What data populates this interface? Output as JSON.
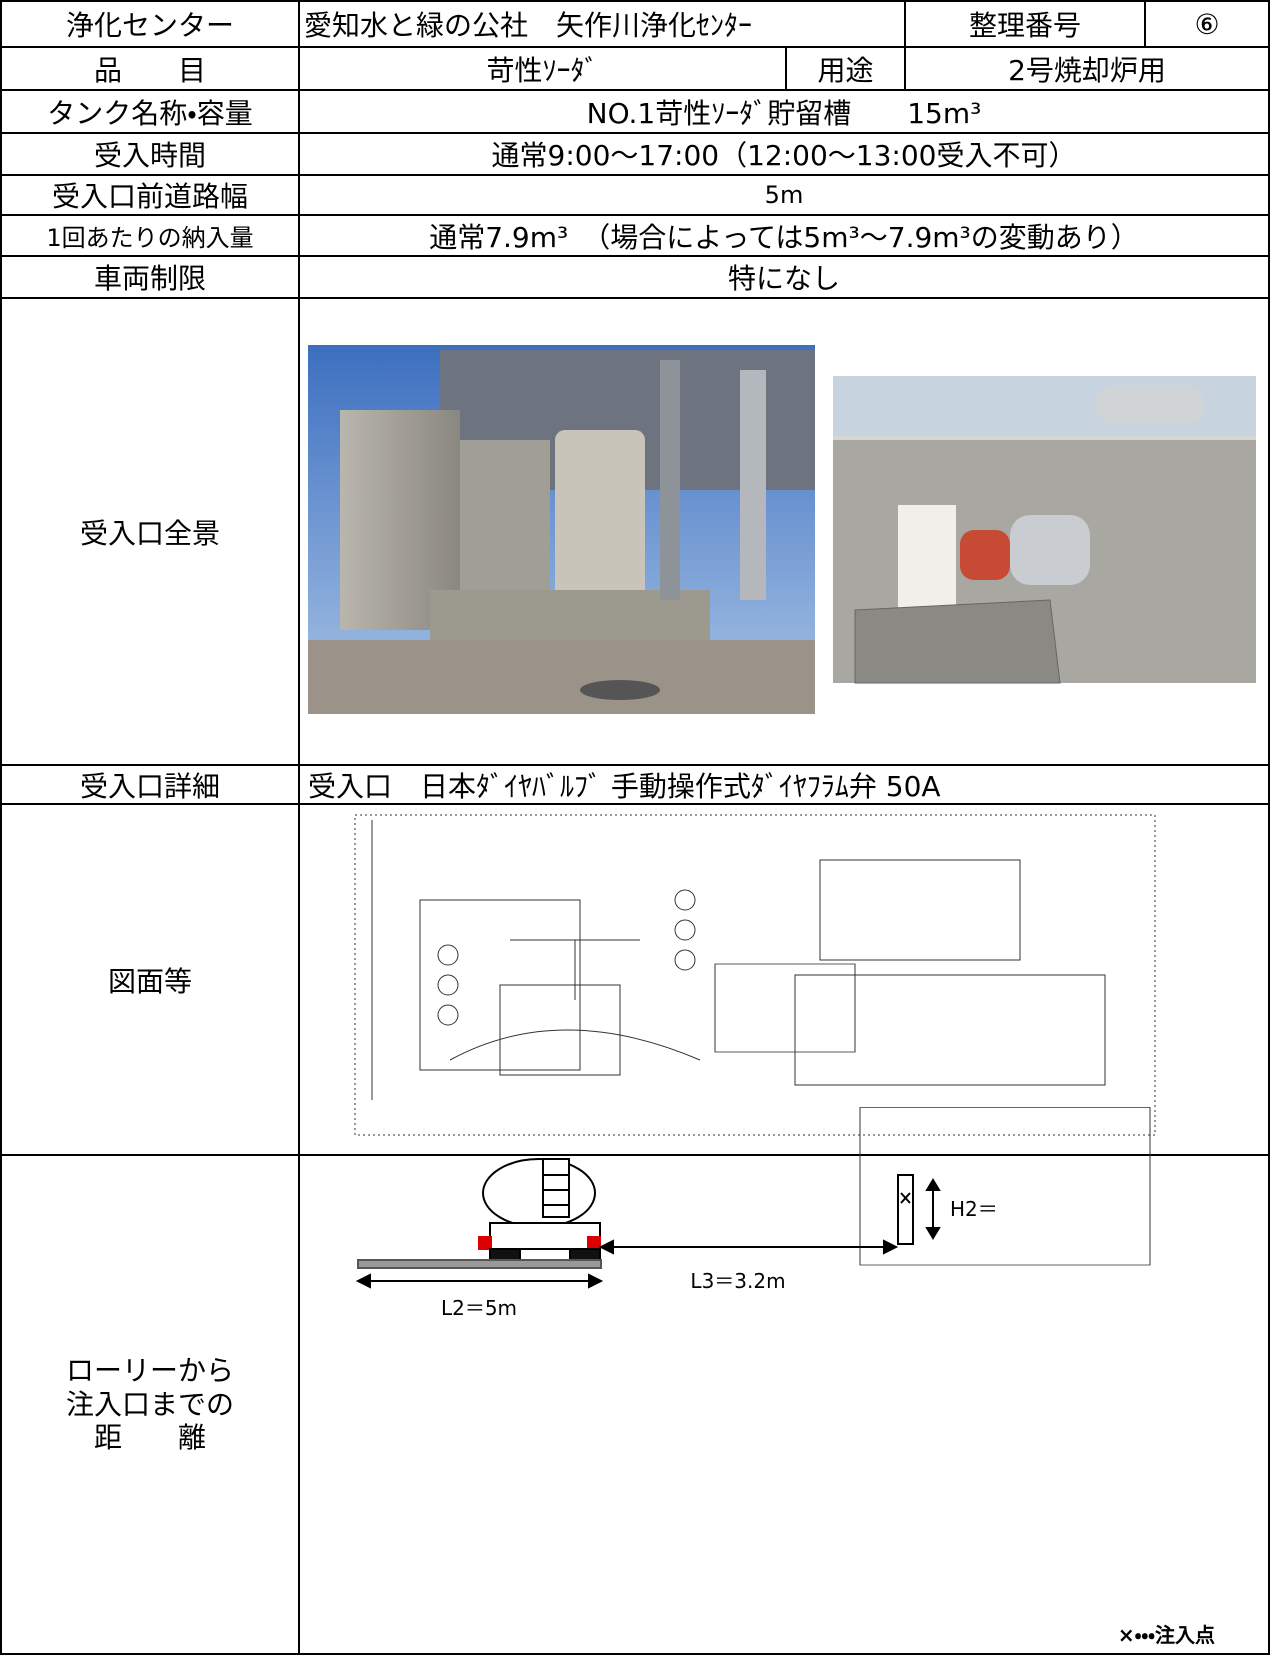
{
  "table": {
    "rows": [
      [
        "浄化センター",
        "愛知水と緑の公社　矢作川浄化ｾﾝﾀｰ",
        "整理番号",
        "⑥"
      ],
      [
        "品　　目",
        "苛性ｿｰﾀﾞ",
        "用途",
        "2号焼却炉用"
      ],
      [
        "タンク名称・容量",
        "NO.1苛性ｿｰﾀﾞ貯留槽　　15m³"
      ],
      [
        "受入時間",
        "通常9:00～17:00（12:00～13:00受入不可）"
      ],
      [
        "受入口前道路幅",
        "5m"
      ],
      [
        "1回あたりの納入量",
        "通常7.9m³　（場合によっては5m³～7.9m³の変動あり）"
      ],
      [
        "車両制限",
        "特になし"
      ],
      [
        "受入口全景"
      ],
      [
        "受入口詳細",
        "受入口　日本ﾀﾞｲﾔﾊﾞﾙﾌﾞ 手動操作式ﾀﾞｲﾔﾌﾗﾑ弁 50A"
      ],
      [
        "図面等"
      ],
      [
        [
          "ローリーから",
          "注入口までの",
          "距　　離"
        ]
      ]
    ]
  },
  "diagram": {
    "l2": "L2＝5m",
    "l3": "L3＝3.2m",
    "h2": "H2＝",
    "note": "×・・・注入点"
  }
}
